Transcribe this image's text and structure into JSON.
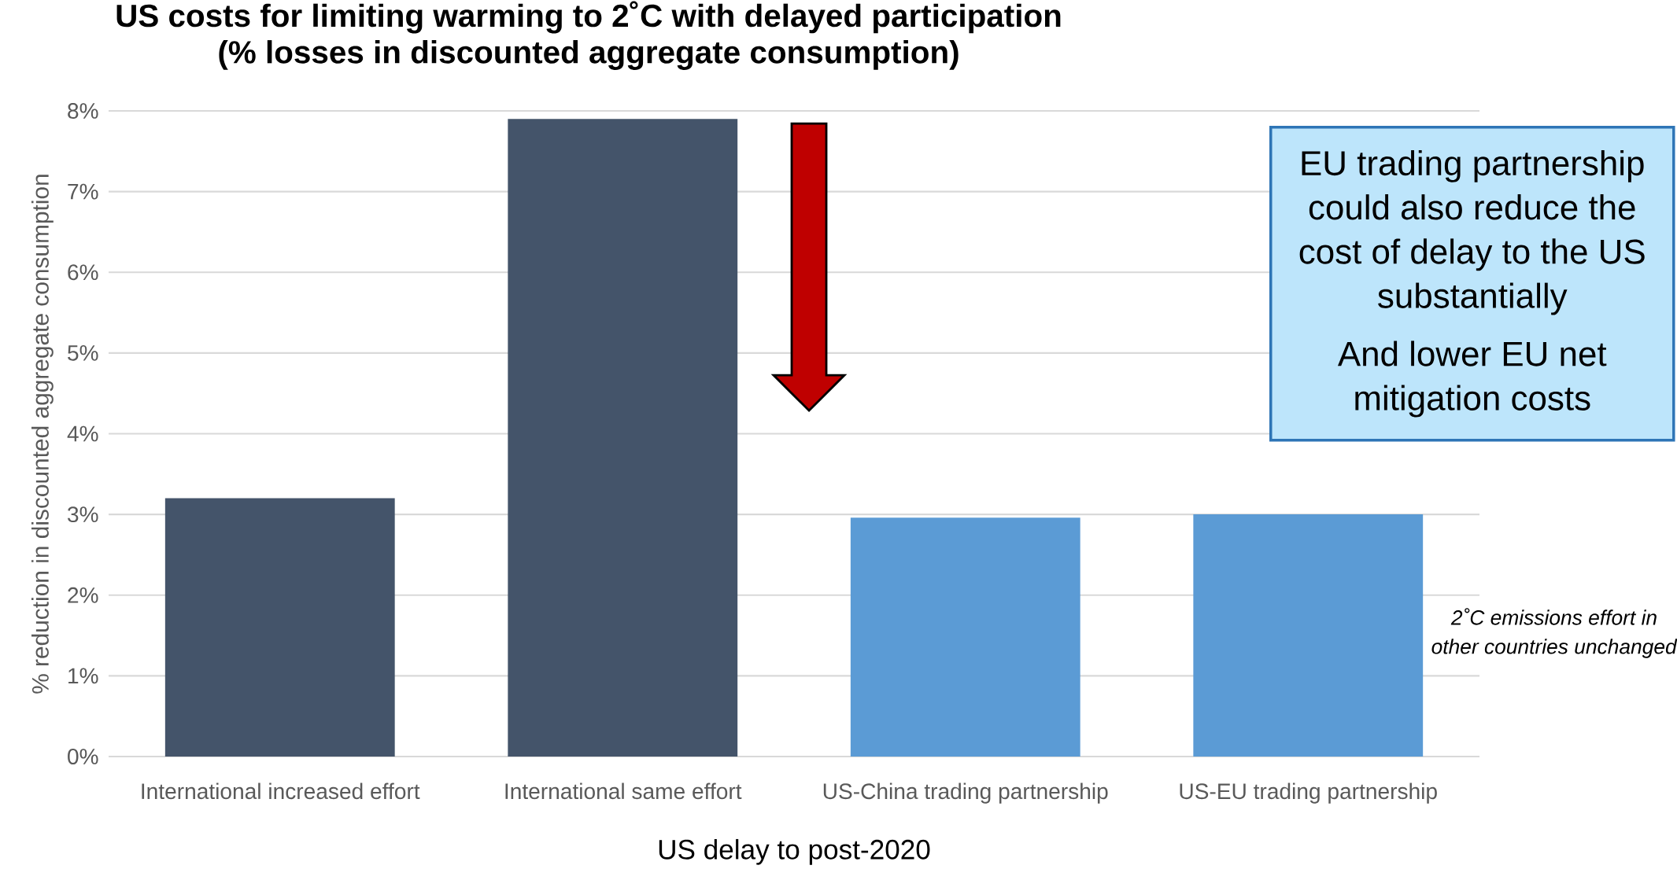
{
  "chart_data": {
    "type": "bar",
    "title": "**US costs for limiting warming to 2˚C with delayed participation**",
    "subtitle": "**(% losses in discounted aggregate consumption)**",
    "categories": [
      "International increased effort",
      "International same effort",
      "US-China trading partnership",
      "US-EU trading partnership"
    ],
    "values": [
      3.2,
      7.9,
      2.96,
      3.0
    ],
    "colors": [
      "#44546a",
      "#44546a",
      "#5b9bd5",
      "#5b9bd5"
    ],
    "xlabel": "US delay to post-2020",
    "ylabel": "% reduction in discounted aggregate consumption",
    "ylim": [
      0,
      8
    ],
    "yticks": [
      {
        "value": 0,
        "label": "0%"
      },
      {
        "value": 1,
        "label": "1%"
      },
      {
        "value": 2,
        "label": "2%"
      },
      {
        "value": 3,
        "label": "3%"
      },
      {
        "value": 4,
        "label": "4%"
      },
      {
        "value": 5,
        "label": "5%"
      },
      {
        "value": 6,
        "label": "6%"
      },
      {
        "value": 7,
        "label": "7%"
      },
      {
        "value": 8,
        "label": "8%"
      }
    ],
    "grid": "y",
    "annotations": [
      "EU trading partnership could also reduce the cost of delay to the US substantially",
      "And lower EU net mitigation costs",
      "*2˚C emissions effort in other countries unchanged*"
    ]
  }
}
